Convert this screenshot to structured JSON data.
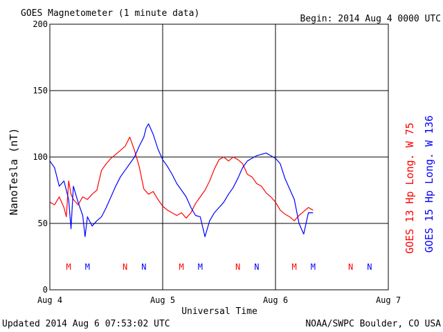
{
  "header": {
    "title": "GOES Magnetometer (1 minute data)",
    "begin": "Begin:  2014 Aug 4 0000 UTC"
  },
  "footer": {
    "updated": "Updated 2014 Aug  6 07:53:02 UTC",
    "credit": "NOAA/SWPC Boulder, CO USA"
  },
  "colors": {
    "goes13": "#ff0000",
    "goes15": "#0000ff",
    "axis": "#000000"
  },
  "chart_data": {
    "type": "line",
    "title": "GOES Magnetometer (1 minute data)",
    "xlabel": "Universal Time",
    "ylabel": "NanoTesla (nT)",
    "xlim": [
      0,
      72
    ],
    "ylim": [
      0,
      200
    ],
    "grid": true,
    "yticks": [
      0,
      50,
      100,
      150,
      200
    ],
    "ytick_labels": [
      "0",
      "50",
      "100",
      "150",
      "200"
    ],
    "xticks": [
      0,
      24,
      48,
      72
    ],
    "xtick_labels": [
      "Aug 4",
      "Aug 5",
      "Aug 6",
      "Aug 7"
    ],
    "series": [
      {
        "name": "GOES 13 Hp  Long. W 75",
        "color": "#ff0000",
        "x": [
          0,
          1,
          2,
          3,
          3.5,
          4,
          4.5,
          5,
          6,
          7,
          8,
          9,
          10,
          11,
          12,
          13,
          14,
          15,
          16,
          17,
          18,
          19,
          20,
          21,
          22,
          23,
          24,
          25,
          26,
          27,
          28,
          29,
          30,
          31,
          32,
          33,
          34,
          35,
          36,
          37,
          38,
          39,
          40,
          41,
          42,
          43,
          44,
          45,
          46,
          47,
          48,
          49,
          50,
          51,
          52,
          53,
          54,
          55,
          56
        ],
        "y": [
          66,
          64,
          70,
          62,
          55,
          82,
          72,
          68,
          64,
          70,
          68,
          72,
          75,
          90,
          95,
          99,
          102,
          105,
          108,
          115,
          105,
          93,
          76,
          72,
          74,
          68,
          63,
          60,
          58,
          56,
          58,
          54,
          58,
          65,
          70,
          75,
          82,
          91,
          98,
          100,
          97,
          100,
          98,
          95,
          87,
          85,
          80,
          78,
          73,
          70,
          66,
          60,
          57,
          55,
          52,
          56,
          59,
          62,
          60
        ]
      },
      {
        "name": "GOES 15 Hp  Long. W 136",
        "color": "#0000ff",
        "x": [
          0,
          1,
          2,
          3,
          4,
          4.5,
          5,
          6,
          7,
          7.5,
          8,
          9,
          10,
          11,
          12,
          13,
          14,
          15,
          16,
          17,
          18,
          19,
          20,
          20.5,
          21,
          22,
          23,
          24,
          25,
          26,
          27,
          28,
          29,
          30,
          31,
          32,
          33,
          34,
          35,
          36,
          37,
          38,
          39,
          40,
          41,
          42,
          43,
          44,
          45,
          46,
          47,
          48,
          49,
          50,
          51,
          52,
          53,
          54,
          55,
          56
        ],
        "y": [
          97,
          92,
          78,
          82,
          68,
          46,
          78,
          66,
          56,
          40,
          55,
          48,
          52,
          55,
          62,
          70,
          78,
          85,
          90,
          95,
          100,
          108,
          115,
          122,
          125,
          117,
          106,
          98,
          93,
          87,
          80,
          75,
          70,
          62,
          56,
          55,
          40,
          52,
          58,
          62,
          66,
          72,
          77,
          84,
          92,
          97,
          99,
          101,
          102,
          103,
          101,
          99,
          95,
          84,
          76,
          68,
          50,
          42,
          58,
          58
        ]
      }
    ],
    "markers": [
      {
        "series": "GOES 13 Hp  Long. W 75",
        "label": "M",
        "x": 4
      },
      {
        "series": "GOES 13 Hp  Long. W 75",
        "label": "N",
        "x": 16
      },
      {
        "series": "GOES 13 Hp  Long. W 75",
        "label": "M",
        "x": 28
      },
      {
        "series": "GOES 13 Hp  Long. W 75",
        "label": "N",
        "x": 40
      },
      {
        "series": "GOES 13 Hp  Long. W 75",
        "label": "M",
        "x": 52
      },
      {
        "series": "GOES 13 Hp  Long. W 75",
        "label": "N",
        "x": 64
      },
      {
        "series": "GOES 15 Hp  Long. W 136",
        "label": "M",
        "x": 8
      },
      {
        "series": "GOES 15 Hp  Long. W 136",
        "label": "N",
        "x": 20
      },
      {
        "series": "GOES 15 Hp  Long. W 136",
        "label": "M",
        "x": 32
      },
      {
        "series": "GOES 15 Hp  Long. W 136",
        "label": "N",
        "x": 44
      },
      {
        "series": "GOES 15 Hp  Long. W 136",
        "label": "M",
        "x": 56
      },
      {
        "series": "GOES 15 Hp  Long. W 136",
        "label": "N",
        "x": 68
      }
    ]
  }
}
